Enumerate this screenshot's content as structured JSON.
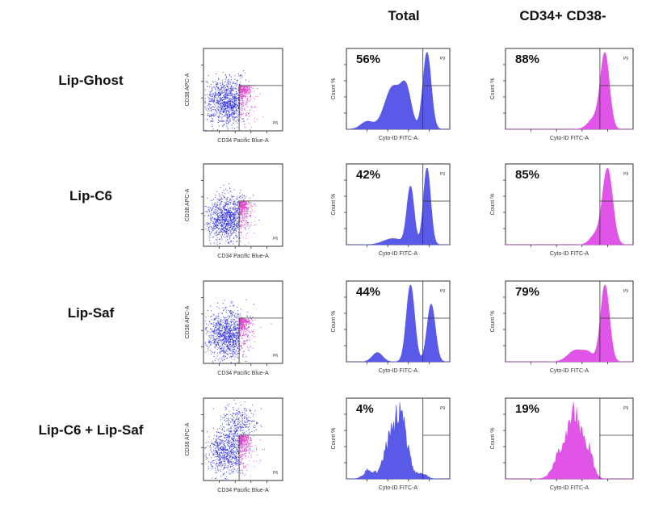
{
  "columns": {
    "total": "Total",
    "subset": "CD34+ CD38-"
  },
  "axes": {
    "scatter_x": "CD34 Pacific Blue-A",
    "scatter_y": "CD38 APC-A",
    "hist_x": "Cyto-ID FITC-A",
    "hist_y": "Count %"
  },
  "gates": {
    "scatter": "P6",
    "hist": "P9"
  },
  "colors": {
    "scatter_blue": "#2a2ae0",
    "scatter_pink": "#e040c8",
    "total_hist": "#5a5ae8",
    "subset_hist": "#e055e8"
  },
  "rows": [
    {
      "label": "Lip-Ghost",
      "total_pct": "56%",
      "subset_pct": "88%"
    },
    {
      "label": "Lip-C6",
      "total_pct": "42%",
      "subset_pct": "85%"
    },
    {
      "label": "Lip-Saf",
      "total_pct": "44%",
      "subset_pct": "79%"
    },
    {
      "label": "Lip-C6 + Lip-Saf",
      "total_pct": "4%",
      "subset_pct": "19%"
    }
  ]
}
